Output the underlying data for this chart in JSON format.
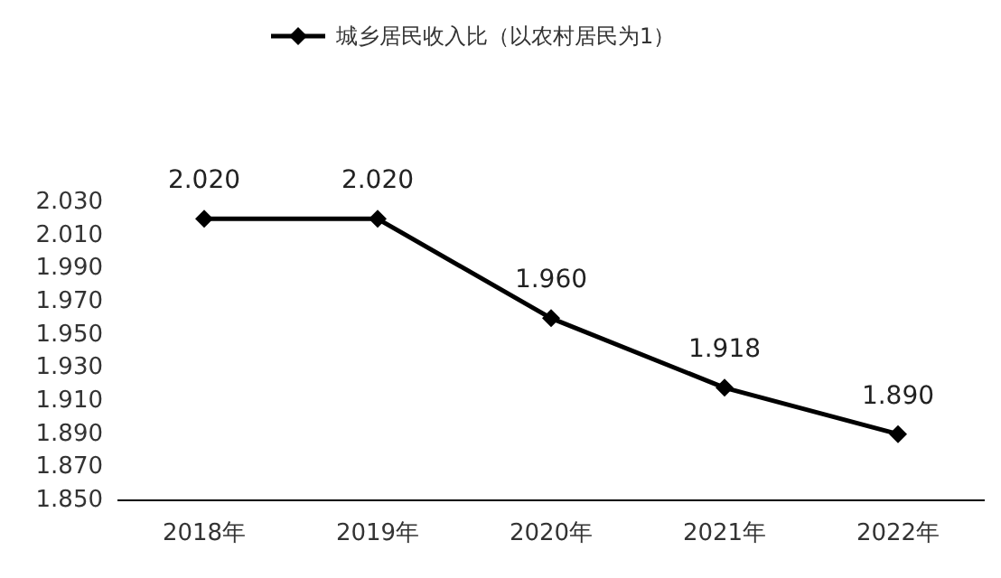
{
  "chart_data": {
    "type": "line",
    "categories": [
      "2018年",
      "2019年",
      "2020年",
      "2021年",
      "2022年"
    ],
    "series": [
      {
        "name": "城乡居民收入比（以农村居民为1）",
        "color": "#000000",
        "values": [
          2.02,
          2.02,
          1.96,
          1.918,
          1.89
        ],
        "value_labels": [
          "2.020",
          "2.020",
          "1.960",
          "1.918",
          "1.890"
        ]
      }
    ],
    "ylim": [
      1.85,
      2.03
    ],
    "yticks": [
      {
        "value": 1.85,
        "label": "1.850"
      },
      {
        "value": 1.87,
        "label": "1.870"
      },
      {
        "value": 1.89,
        "label": "1.890"
      },
      {
        "value": 1.91,
        "label": "1.910"
      },
      {
        "value": 1.93,
        "label": "1.930"
      },
      {
        "value": 1.95,
        "label": "1.950"
      },
      {
        "value": 1.97,
        "label": "1.970"
      },
      {
        "value": 1.99,
        "label": "1.990"
      },
      {
        "value": 2.01,
        "label": "2.010"
      },
      {
        "value": 2.03,
        "label": "2.030"
      }
    ],
    "legend": "top",
    "marker": "diamond",
    "line_style": "solid",
    "grid": false
  }
}
